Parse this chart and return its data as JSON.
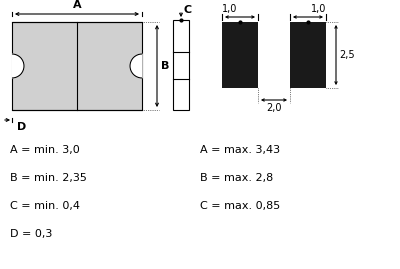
{
  "bg_color": "#ffffff",
  "text_color": "#000000",
  "line_color": "#000000",
  "fill_color": "#d0d0d0",
  "black_fill": "#1a1a1a",
  "specs_left": [
    "A = min. 3,0",
    "B = min. 2,35",
    "C = min. 0,4",
    "D = 0,3"
  ],
  "specs_right": [
    "A = max. 3,43",
    "B = max. 2,8",
    "C = max. 0,85",
    ""
  ],
  "font_size": 8.0,
  "dim_font_size": 7.0
}
